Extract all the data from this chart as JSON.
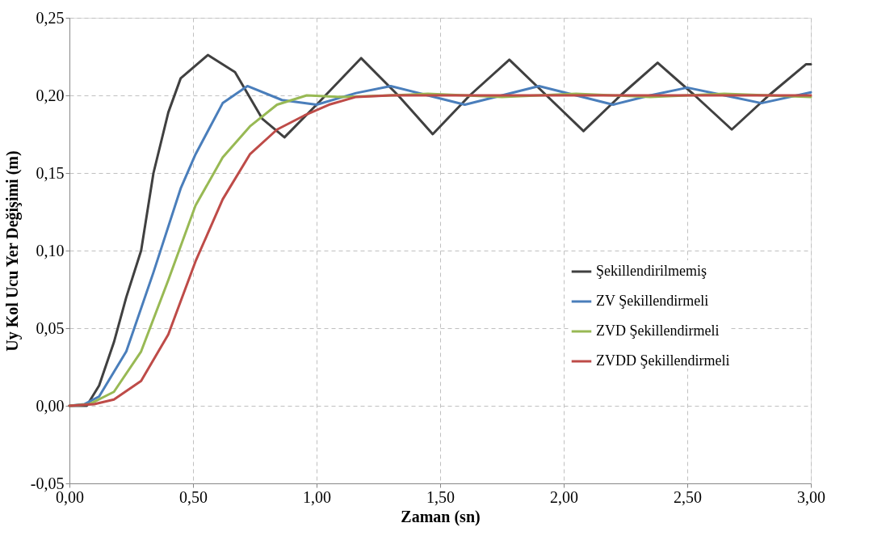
{
  "chart_data": {
    "type": "line",
    "xlabel": "Zaman (sn)",
    "ylabel": "Uy Kol Ucu Yer Değişimi (m)",
    "xlim": [
      0,
      3
    ],
    "ylim": [
      -0.05,
      0.25
    ],
    "xticks": [
      {
        "value": 0,
        "label": "0,00"
      },
      {
        "value": 0.5,
        "label": "0,50"
      },
      {
        "value": 1,
        "label": "1,00"
      },
      {
        "value": 1.5,
        "label": "1,50"
      },
      {
        "value": 2,
        "label": "2,00"
      },
      {
        "value": 2.5,
        "label": "2,50"
      },
      {
        "value": 3,
        "label": "3,00"
      }
    ],
    "yticks": [
      {
        "value": -0.05,
        "label": "-0,05"
      },
      {
        "value": 0,
        "label": "0,00"
      },
      {
        "value": 0.05,
        "label": "0,05"
      },
      {
        "value": 0.1,
        "label": "0,10"
      },
      {
        "value": 0.15,
        "label": "0,15"
      },
      {
        "value": 0.2,
        "label": "0,20"
      },
      {
        "value": 0.25,
        "label": "0,25"
      }
    ],
    "grid": true,
    "legend": "right",
    "line_style": "solid",
    "marker": "none",
    "series": [
      {
        "name": "Şekillendirilmemiş",
        "color": "#404040",
        "x": [
          0,
          0.07,
          0.12,
          0.18,
          0.23,
          0.29,
          0.34,
          0.4,
          0.45,
          0.56,
          0.67,
          0.78,
          0.87,
          1.0,
          1.18,
          1.33,
          1.47,
          1.62,
          1.78,
          1.93,
          2.08,
          2.23,
          2.38,
          2.53,
          2.68,
          2.83,
          2.98,
          3.0
        ],
        "values": [
          0,
          0.0,
          0.013,
          0.041,
          0.07,
          0.1,
          0.15,
          0.189,
          0.211,
          0.226,
          0.215,
          0.185,
          0.173,
          0.194,
          0.224,
          0.2,
          0.175,
          0.2,
          0.223,
          0.2,
          0.177,
          0.2,
          0.221,
          0.2,
          0.178,
          0.2,
          0.22,
          0.22
        ]
      },
      {
        "name": "ZV Şekillendirmeli",
        "color": "#4a7ebb",
        "x": [
          0,
          0.06,
          0.12,
          0.23,
          0.34,
          0.45,
          0.51,
          0.62,
          0.72,
          0.86,
          1.0,
          1.16,
          1.3,
          1.45,
          1.6,
          1.75,
          1.9,
          2.05,
          2.2,
          2.35,
          2.5,
          2.65,
          2.8,
          3.0
        ],
        "values": [
          0,
          0.001,
          0.006,
          0.035,
          0.086,
          0.14,
          0.162,
          0.195,
          0.206,
          0.197,
          0.194,
          0.2015,
          0.206,
          0.2,
          0.194,
          0.2,
          0.206,
          0.2,
          0.194,
          0.2,
          0.205,
          0.2,
          0.195,
          0.202
        ]
      },
      {
        "name": "ZVD Şekillendirmeli",
        "color": "#98b954",
        "x": [
          0,
          0.08,
          0.18,
          0.29,
          0.4,
          0.51,
          0.62,
          0.73,
          0.84,
          0.96,
          1.1,
          1.3,
          1.45,
          1.75,
          2.05,
          2.35,
          2.65,
          3.0
        ],
        "values": [
          0,
          0.001,
          0.009,
          0.035,
          0.081,
          0.129,
          0.16,
          0.18,
          0.194,
          0.2,
          0.199,
          0.2,
          0.201,
          0.199,
          0.201,
          0.199,
          0.201,
          0.199
        ]
      },
      {
        "name": "ZVDD Şekillendirmeli",
        "color": "#be4b48",
        "x": [
          0,
          0.1,
          0.18,
          0.29,
          0.4,
          0.51,
          0.62,
          0.73,
          0.84,
          0.95,
          1.05,
          1.16,
          1.3,
          1.6,
          2.0,
          2.5,
          3.0
        ],
        "values": [
          0,
          0.001,
          0.004,
          0.016,
          0.046,
          0.093,
          0.133,
          0.162,
          0.178,
          0.187,
          0.194,
          0.199,
          0.2,
          0.2,
          0.2,
          0.2,
          0.2
        ]
      }
    ]
  }
}
